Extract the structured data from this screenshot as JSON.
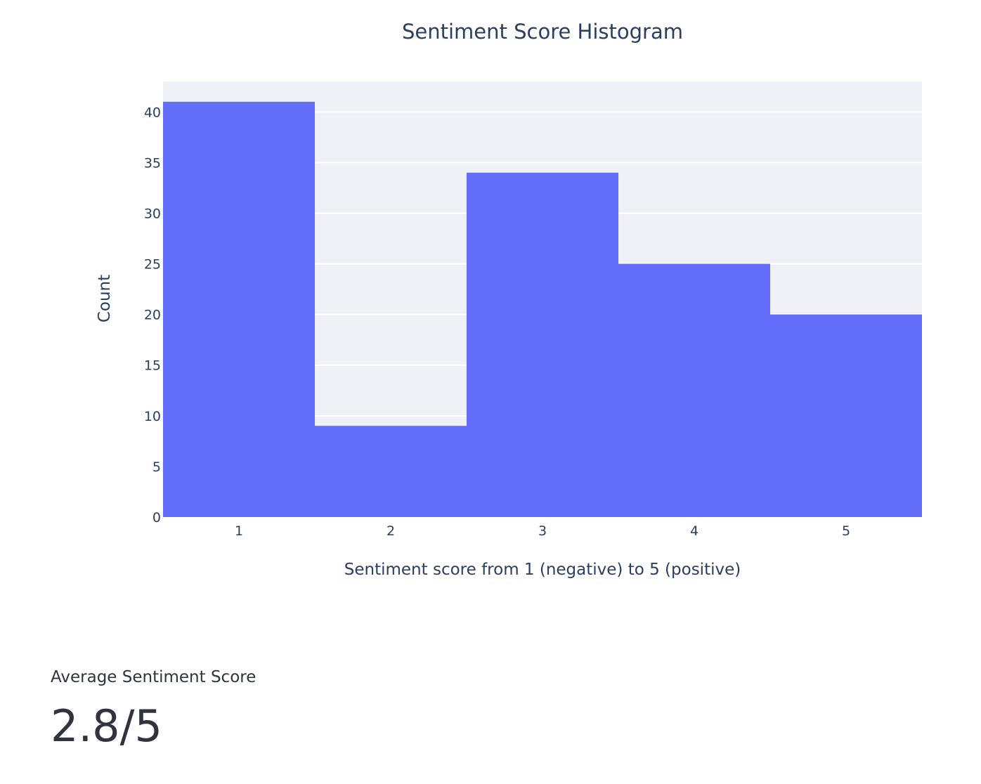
{
  "chart_data": {
    "type": "bar",
    "title": "Sentiment Score Histogram",
    "xlabel": "Sentiment score from 1 (negative) to 5 (positive)",
    "ylabel": "Count",
    "categories": [
      "1",
      "2",
      "3",
      "4",
      "5"
    ],
    "values": [
      41,
      9,
      34,
      25,
      20
    ],
    "ylim": [
      0,
      43
    ],
    "yticks": [
      0,
      5,
      10,
      15,
      20,
      25,
      30,
      35,
      40
    ],
    "bar_color": "#636efa",
    "plot_bg": "#eff1f6",
    "grid": true,
    "legend": "none"
  },
  "metric": {
    "label": "Average Sentiment Score",
    "value": "2.8/5"
  }
}
